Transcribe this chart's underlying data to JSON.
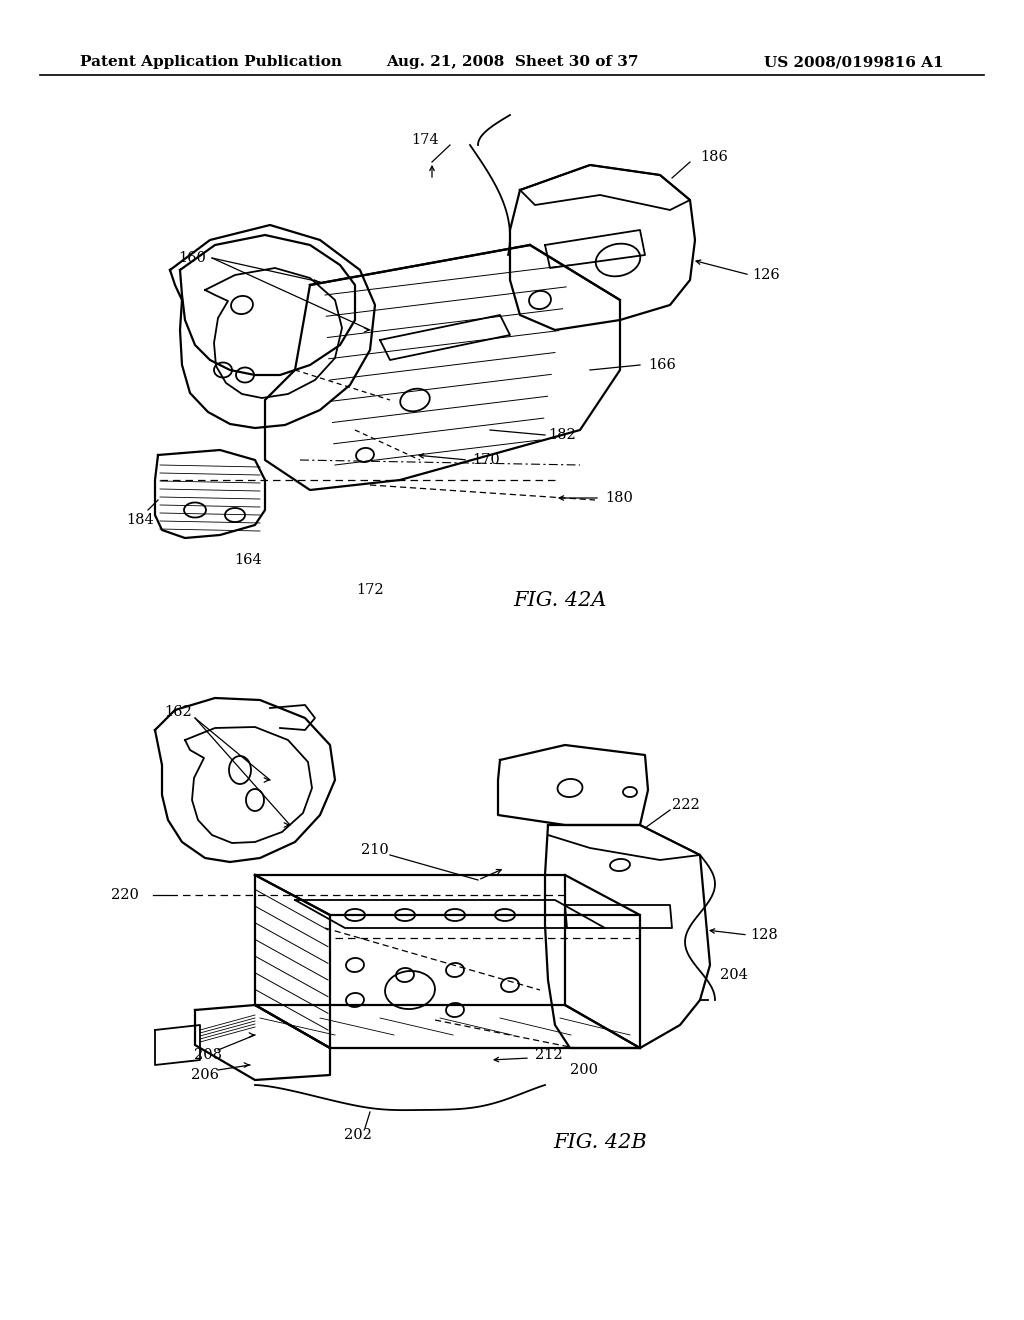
{
  "bg_color": "#ffffff",
  "line_color": "#000000",
  "header_left": "Patent Application Publication",
  "header_center": "Aug. 21, 2008  Sheet 30 of 37",
  "header_right": "US 2008/0199816 A1",
  "fig_label_A": "FIG. 42A",
  "fig_label_B": "FIG. 42B",
  "header_fontsize": 11,
  "label_fontsize": 10.5,
  "fig_label_fontsize": 15
}
